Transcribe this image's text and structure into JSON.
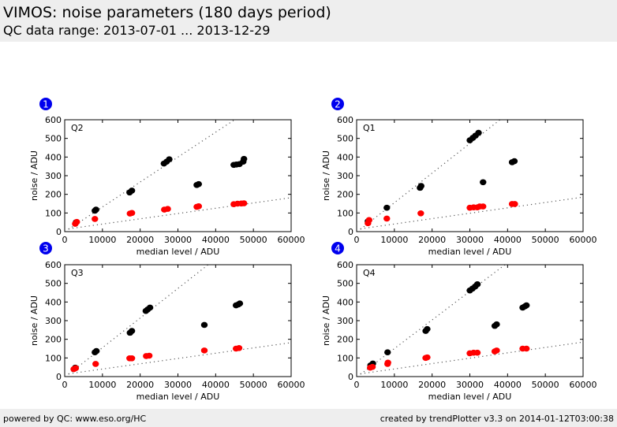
{
  "header": {
    "title": "VIMOS: noise parameters (180 days period)",
    "subtitle": "QC data range: 2013-07-01 ... 2013-12-29"
  },
  "footer": {
    "left": "powered by QC: www.eso.org/HC",
    "right": "created by trendPlotter v3.3 on 2014-01-12T03:00:38"
  },
  "colors": {
    "badge": "#0000ee",
    "series_black": "#000000",
    "series_red": "#ff0000",
    "fit_line": "#555555"
  },
  "chart_data": [
    {
      "type": "scatter",
      "badge": "1",
      "label": "Q2",
      "xlabel": "median level / ADU",
      "ylabel": "noise / ADU",
      "xlim": [
        0,
        60000
      ],
      "ylim": [
        0,
        600
      ],
      "xticks": [
        "0",
        "10000",
        "20000",
        "30000",
        "40000",
        "50000",
        "60000"
      ],
      "yticks": [
        "0",
        "100",
        "200",
        "300",
        "400",
        "500",
        "600"
      ],
      "series": [
        {
          "name": "black",
          "points": [
            [
              3000,
              50
            ],
            [
              8000,
              112
            ],
            [
              8300,
              118
            ],
            [
              17200,
              210
            ],
            [
              17800,
              220
            ],
            [
              26300,
              365
            ],
            [
              27000,
              375
            ],
            [
              27700,
              388
            ],
            [
              35000,
              250
            ],
            [
              35500,
              255
            ],
            [
              44800,
              358
            ],
            [
              45500,
              360
            ],
            [
              46300,
              362
            ],
            [
              47300,
              375
            ],
            [
              47500,
              390
            ]
          ]
        },
        {
          "name": "red",
          "points": [
            [
              2800,
              42
            ],
            [
              3200,
              52
            ],
            [
              8000,
              68
            ],
            [
              17300,
              97
            ],
            [
              17800,
              100
            ],
            [
              26400,
              118
            ],
            [
              27300,
              122
            ],
            [
              35000,
              133
            ],
            [
              35500,
              136
            ],
            [
              44800,
              147
            ],
            [
              45800,
              150
            ],
            [
              46800,
              151
            ],
            [
              47500,
              152
            ]
          ]
        }
      ],
      "fits": [
        {
          "name": "steep",
          "from": [
            1000,
            12
          ],
          "to": [
            45000,
            600
          ]
        },
        {
          "name": "shallow",
          "from": [
            1000,
            15
          ],
          "to": [
            60000,
            182
          ]
        }
      ]
    },
    {
      "type": "scatter",
      "badge": "2",
      "label": "Q1",
      "xlabel": "median level / ADU",
      "ylabel": "noise / ADU",
      "xlim": [
        0,
        60000
      ],
      "ylim": [
        0,
        600
      ],
      "xticks": [
        "0",
        "10000",
        "20000",
        "30000",
        "40000",
        "50000",
        "60000"
      ],
      "yticks": [
        "0",
        "100",
        "200",
        "300",
        "400",
        "500",
        "600"
      ],
      "series": [
        {
          "name": "black",
          "points": [
            [
              3000,
              55
            ],
            [
              8000,
              128
            ],
            [
              16800,
              235
            ],
            [
              17100,
              245
            ],
            [
              30000,
              490
            ],
            [
              30800,
              503
            ],
            [
              31500,
              515
            ],
            [
              32300,
              530
            ],
            [
              33500,
              265
            ],
            [
              41200,
              372
            ],
            [
              41800,
              378
            ]
          ]
        },
        {
          "name": "red",
          "points": [
            [
              3000,
              45
            ],
            [
              3300,
              62
            ],
            [
              8000,
              70
            ],
            [
              17000,
              98
            ],
            [
              30000,
              128
            ],
            [
              31000,
              130
            ],
            [
              32000,
              130
            ],
            [
              32600,
              135
            ],
            [
              33500,
              135
            ],
            [
              41200,
              148
            ],
            [
              41900,
              148
            ]
          ]
        }
      ],
      "fits": [
        {
          "name": "steep",
          "from": [
            1000,
            12
          ],
          "to": [
            38000,
            600
          ]
        },
        {
          "name": "shallow",
          "from": [
            1000,
            15
          ],
          "to": [
            60000,
            185
          ]
        }
      ]
    },
    {
      "type": "scatter",
      "badge": "3",
      "label": "Q3",
      "xlabel": "median level / ADU",
      "ylabel": "noise / ADU",
      "xlim": [
        0,
        60000
      ],
      "ylim": [
        0,
        600
      ],
      "xticks": [
        "0",
        "10000",
        "20000",
        "30000",
        "40000",
        "50000",
        "60000"
      ],
      "yticks": [
        "0",
        "100",
        "200",
        "300",
        "400",
        "500",
        "600"
      ],
      "series": [
        {
          "name": "black",
          "points": [
            [
              2800,
              48
            ],
            [
              8000,
              130
            ],
            [
              8400,
              137
            ],
            [
              17300,
              235
            ],
            [
              17800,
              245
            ],
            [
              21500,
              352
            ],
            [
              22000,
              360
            ],
            [
              22600,
              370
            ],
            [
              37000,
              277
            ],
            [
              45400,
              382
            ],
            [
              46000,
              387
            ],
            [
              46400,
              392
            ]
          ]
        },
        {
          "name": "red",
          "points": [
            [
              2400,
              40
            ],
            [
              2900,
              45
            ],
            [
              8200,
              68
            ],
            [
              17200,
              98
            ],
            [
              17800,
              98
            ],
            [
              21600,
              110
            ],
            [
              22400,
              112
            ],
            [
              37000,
              140
            ],
            [
              45400,
              150
            ],
            [
              46200,
              153
            ]
          ]
        }
      ],
      "fits": [
        {
          "name": "steep",
          "from": [
            1000,
            12
          ],
          "to": [
            38000,
            600
          ]
        },
        {
          "name": "shallow",
          "from": [
            1000,
            15
          ],
          "to": [
            60000,
            182
          ]
        }
      ]
    },
    {
      "type": "scatter",
      "badge": "4",
      "label": "Q4",
      "xlabel": "median level / ADU",
      "ylabel": "noise / ADU",
      "xlim": [
        0,
        60000
      ],
      "ylim": [
        0,
        600
      ],
      "xticks": [
        "0",
        "10000",
        "20000",
        "30000",
        "40000",
        "50000",
        "60000"
      ],
      "yticks": [
        "0",
        "100",
        "200",
        "300",
        "400",
        "500",
        "600"
      ],
      "series": [
        {
          "name": "black",
          "points": [
            [
              3700,
              60
            ],
            [
              4300,
              70
            ],
            [
              8200,
              130
            ],
            [
              18300,
              245
            ],
            [
              18700,
              255
            ],
            [
              30000,
              462
            ],
            [
              30700,
              472
            ],
            [
              31400,
              483
            ],
            [
              32000,
              495
            ],
            [
              36600,
              272
            ],
            [
              37100,
              280
            ],
            [
              44000,
              370
            ],
            [
              44600,
              377
            ],
            [
              45000,
              382
            ]
          ]
        },
        {
          "name": "red",
          "points": [
            [
              3600,
              48
            ],
            [
              4200,
              52
            ],
            [
              8200,
              68
            ],
            [
              8300,
              75
            ],
            [
              18300,
              100
            ],
            [
              18700,
              103
            ],
            [
              30000,
              125
            ],
            [
              31000,
              128
            ],
            [
              32000,
              128
            ],
            [
              36600,
              135
            ],
            [
              37100,
              140
            ],
            [
              44000,
              150
            ],
            [
              45000,
              150
            ]
          ]
        }
      ],
      "fits": [
        {
          "name": "steep",
          "from": [
            1000,
            12
          ],
          "to": [
            39300,
            600
          ]
        },
        {
          "name": "shallow",
          "from": [
            1000,
            15
          ],
          "to": [
            60000,
            185
          ]
        }
      ]
    }
  ]
}
